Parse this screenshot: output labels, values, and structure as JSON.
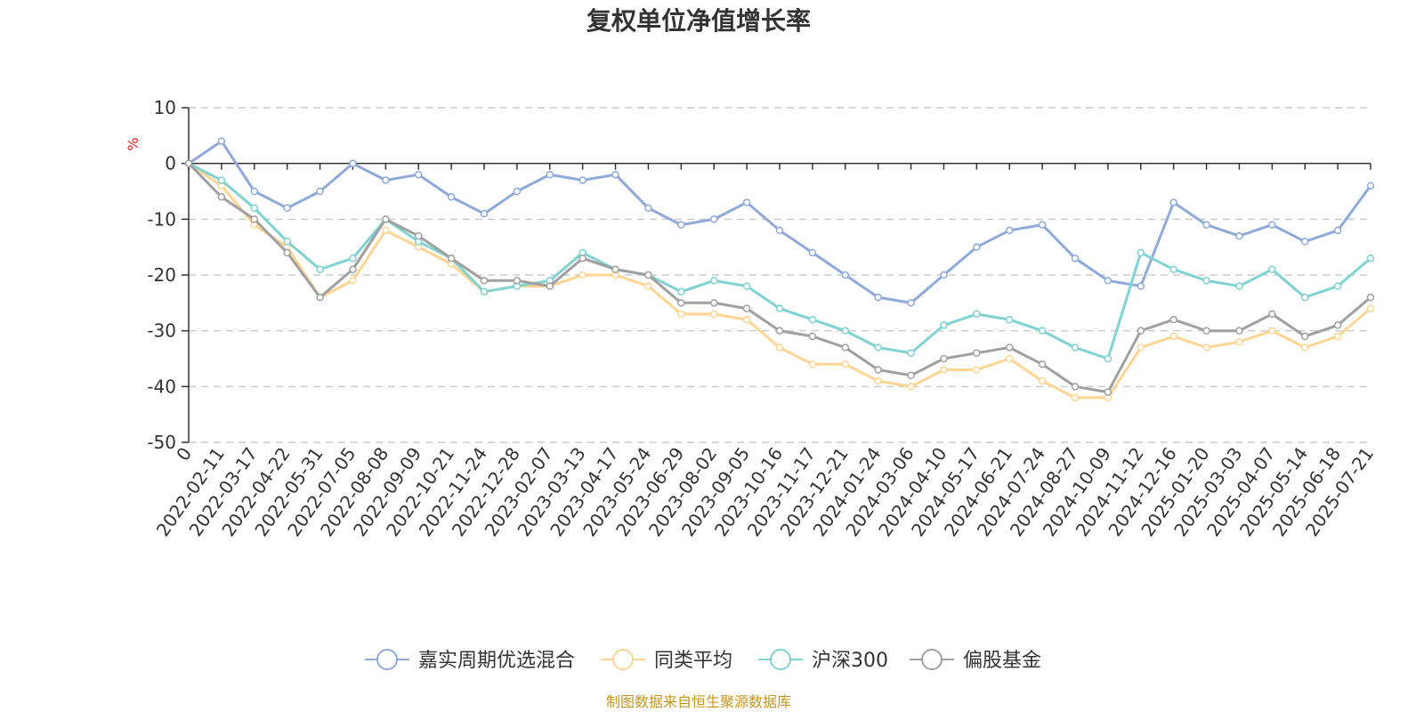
{
  "chart_data": {
    "type": "line",
    "title": "复权单位净值增长率",
    "yunit": "%",
    "ylim": [
      -50,
      10
    ],
    "yticks": [
      10,
      0,
      -10,
      -20,
      -30,
      -40,
      -50
    ],
    "grid": true,
    "legend_position": "bottom",
    "x_tick_labels": [
      "0",
      "2022-02-11",
      "2022-03-17",
      "2022-04-22",
      "2022-05-31",
      "2022-07-05",
      "2022-08-08",
      "2022-09-09",
      "2022-10-21",
      "2022-11-24",
      "2022-12-28",
      "2023-02-07",
      "2023-03-13",
      "2023-04-17",
      "2023-05-24",
      "2023-06-29",
      "2023-08-02",
      "2023-09-05",
      "2023-10-16",
      "2023-11-17",
      "2023-12-21",
      "2024-01-24",
      "2024-03-06",
      "2024-04-10",
      "2024-05-17",
      "2024-06-21",
      "2024-07-24",
      "2024-08-27",
      "2024-10-09",
      "2024-11-12",
      "2024-12-16",
      "2025-01-20",
      "2025-03-03",
      "2025-04-07",
      "2025-05-14",
      "2025-06-18",
      "2025-07-21"
    ],
    "series": [
      {
        "name": "嘉实周期优选混合",
        "color": "#8eaadb",
        "values": [
          0,
          4,
          -5,
          -8,
          -5,
          0,
          -3,
          -2,
          -6,
          -9,
          -5,
          -2,
          -3,
          -2,
          -8,
          -11,
          -10,
          -7,
          -12,
          -16,
          -20,
          -24,
          -25,
          -20,
          -15,
          -12,
          -11,
          -17,
          -21,
          -22,
          -7,
          -11,
          -13,
          -11,
          -14,
          -12,
          -4
        ]
      },
      {
        "name": "同类平均",
        "color": "#ffd591",
        "values": [
          0,
          -4,
          -11,
          -15,
          -24,
          -21,
          -12,
          -15,
          -18,
          -23,
          -22,
          -22,
          -20,
          -20,
          -22,
          -27,
          -27,
          -28,
          -33,
          -36,
          -36,
          -39,
          -40,
          -37,
          -37,
          -35,
          -39,
          -42,
          -42,
          -33,
          -31,
          -33,
          -32,
          -30,
          -33,
          -31,
          -26
        ]
      },
      {
        "name": "沪深300",
        "color": "#7fd3d3",
        "values": [
          0,
          -3,
          -8,
          -14,
          -19,
          -17,
          -10,
          -14,
          -17,
          -23,
          -22,
          -21,
          -16,
          -19,
          -20,
          -23,
          -21,
          -22,
          -26,
          -28,
          -30,
          -33,
          -34,
          -29,
          -27,
          -28,
          -30,
          -33,
          -35,
          -16,
          -19,
          -21,
          -22,
          -19,
          -24,
          -22,
          -17
        ]
      },
      {
        "name": "偏股基金",
        "color": "#a0a0a0",
        "values": [
          0,
          -6,
          -10,
          -16,
          -24,
          -19,
          -10,
          -13,
          -17,
          -21,
          -21,
          -22,
          -17,
          -19,
          -20,
          -25,
          -25,
          -26,
          -30,
          -31,
          -33,
          -37,
          -38,
          -35,
          -34,
          -33,
          -36,
          -40,
          -41,
          -30,
          -28,
          -30,
          -30,
          -27,
          -31,
          -29,
          -24
        ]
      }
    ]
  },
  "footer": {
    "source": "制图数据来自恒生聚源数据库"
  }
}
